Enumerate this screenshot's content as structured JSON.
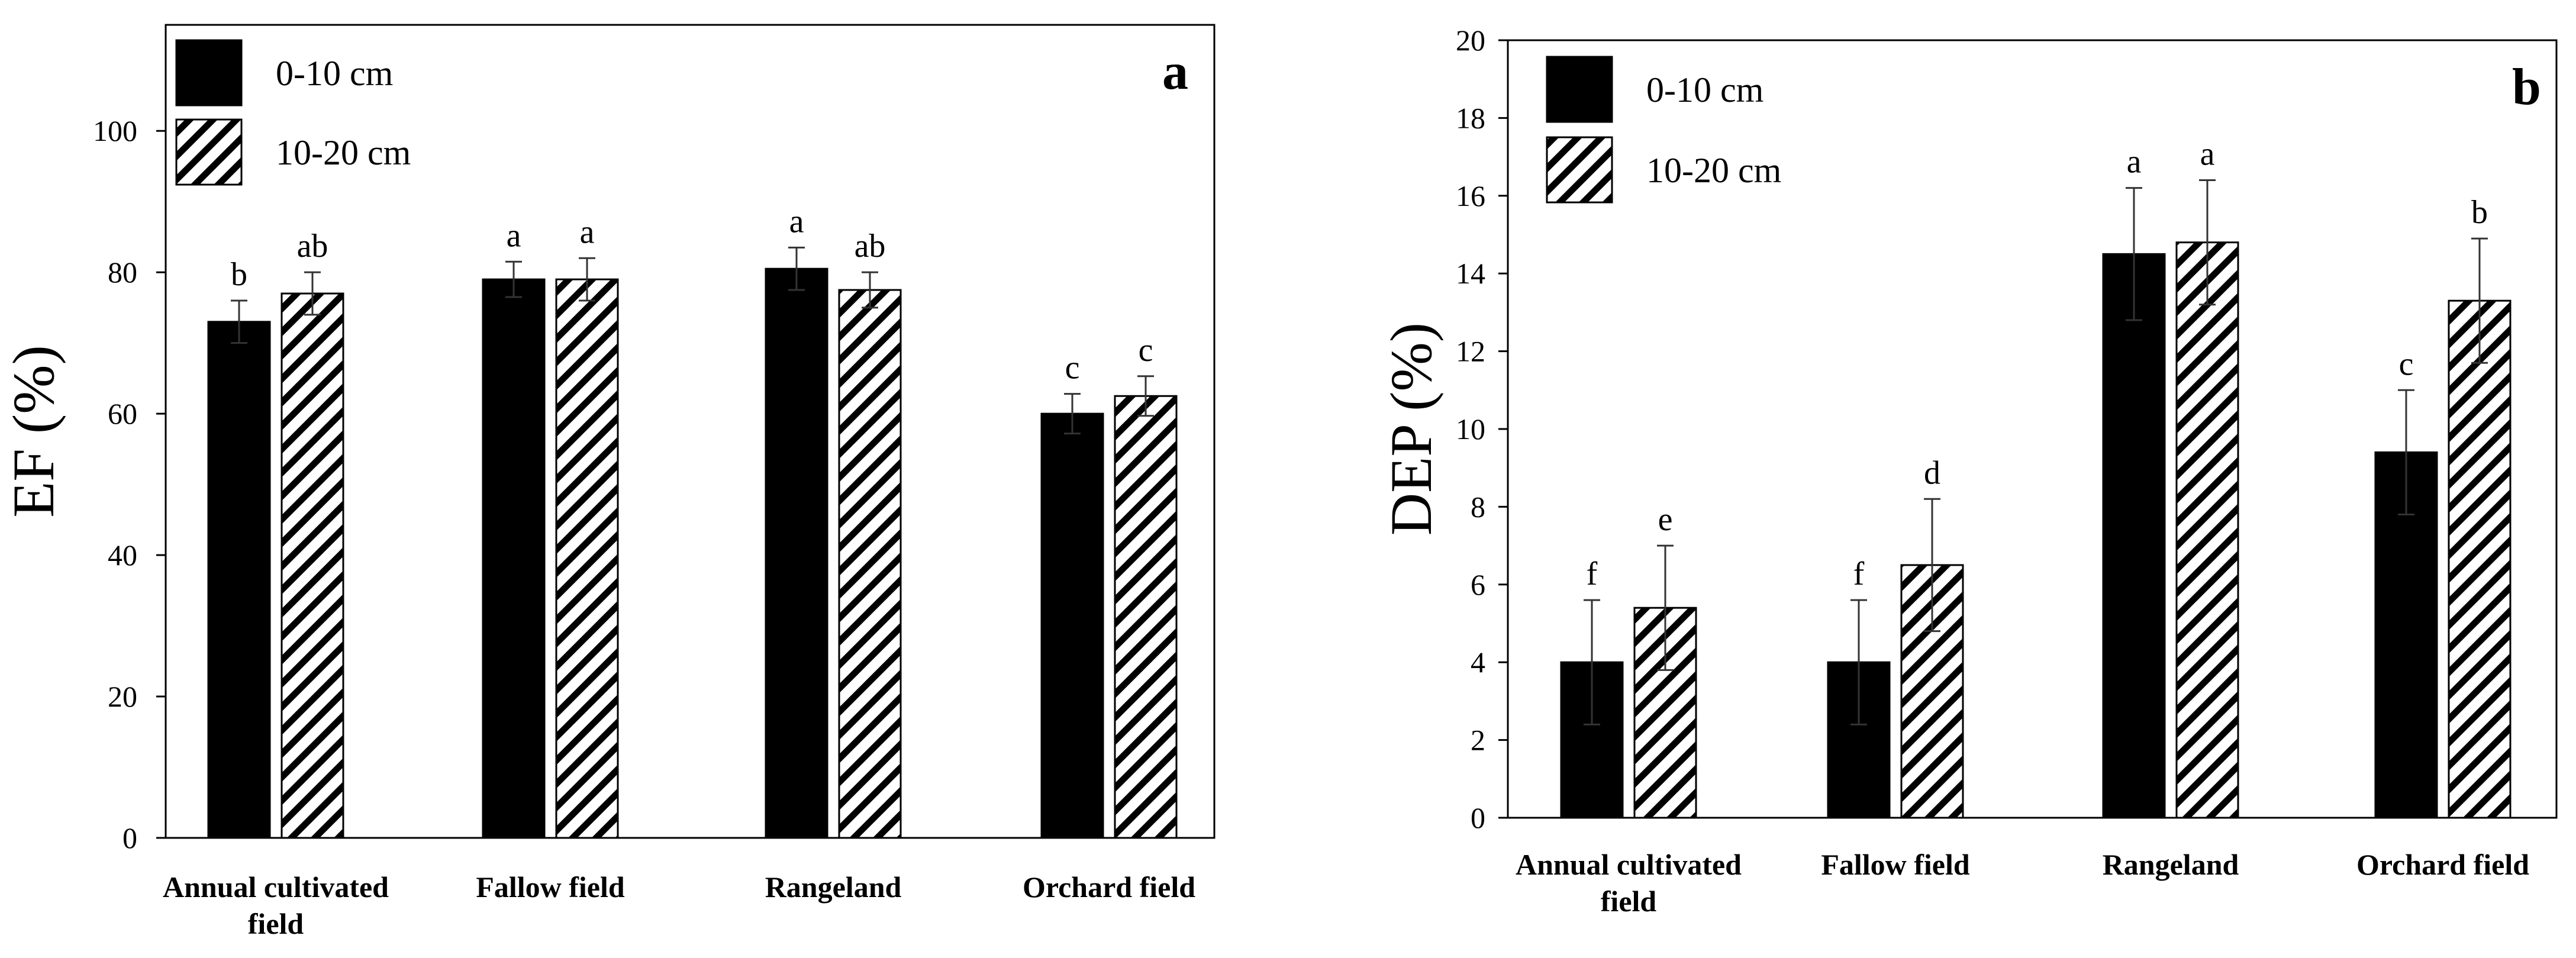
{
  "colors": {
    "solid": "#000000",
    "hatch_line": "#000000",
    "background": "#ffffff"
  },
  "legend": [
    "0-10 cm",
    "10-20 cm"
  ],
  "chart_data": [
    {
      "type": "bar",
      "panel_label": "a",
      "categories": [
        [
          "Annual cultivated",
          "field"
        ],
        [
          "Fallow field"
        ],
        [
          "Rangeland"
        ],
        [
          "Orchard field"
        ]
      ],
      "series": [
        {
          "name": "0-10 cm",
          "fill": "solid",
          "values": [
            73,
            79,
            80.5,
            60
          ],
          "errors": [
            3,
            2.5,
            3,
            2.8
          ],
          "letters": [
            "b",
            "a",
            "a",
            "c"
          ]
        },
        {
          "name": "10-20 cm",
          "fill": "hatch",
          "values": [
            77,
            79,
            77.5,
            62.5
          ],
          "errors": [
            3,
            3,
            2.5,
            2.8
          ],
          "letters": [
            "ab",
            "a",
            "ab",
            "c"
          ]
        }
      ],
      "ylabel": "EF (%)",
      "ylim": [
        0,
        115
      ],
      "yticks": [
        0,
        20,
        40,
        60,
        80,
        100
      ],
      "grid": false,
      "legend_position": "top-left"
    },
    {
      "type": "bar",
      "panel_label": "b",
      "categories": [
        [
          "Annual cultivated",
          "field"
        ],
        [
          "Fallow field"
        ],
        [
          "Rangeland"
        ],
        [
          "Orchard field"
        ]
      ],
      "series": [
        {
          "name": "0-10 cm",
          "fill": "solid",
          "values": [
            4,
            4,
            14.5,
            9.4
          ],
          "errors": [
            1.6,
            1.6,
            1.7,
            1.6
          ],
          "letters": [
            "f",
            "f",
            "a",
            "c"
          ]
        },
        {
          "name": "10-20 cm",
          "fill": "hatch",
          "values": [
            5.4,
            6.5,
            14.8,
            13.3
          ],
          "errors": [
            1.6,
            1.7,
            1.6,
            1.6
          ],
          "letters": [
            "e",
            "d",
            "a",
            "b"
          ]
        }
      ],
      "ylabel": "DEP (%)",
      "ylim": [
        0,
        20
      ],
      "yticks": [
        0,
        2,
        4,
        6,
        8,
        10,
        12,
        14,
        16,
        18,
        20
      ],
      "grid": false,
      "legend_position": "top-left"
    }
  ]
}
